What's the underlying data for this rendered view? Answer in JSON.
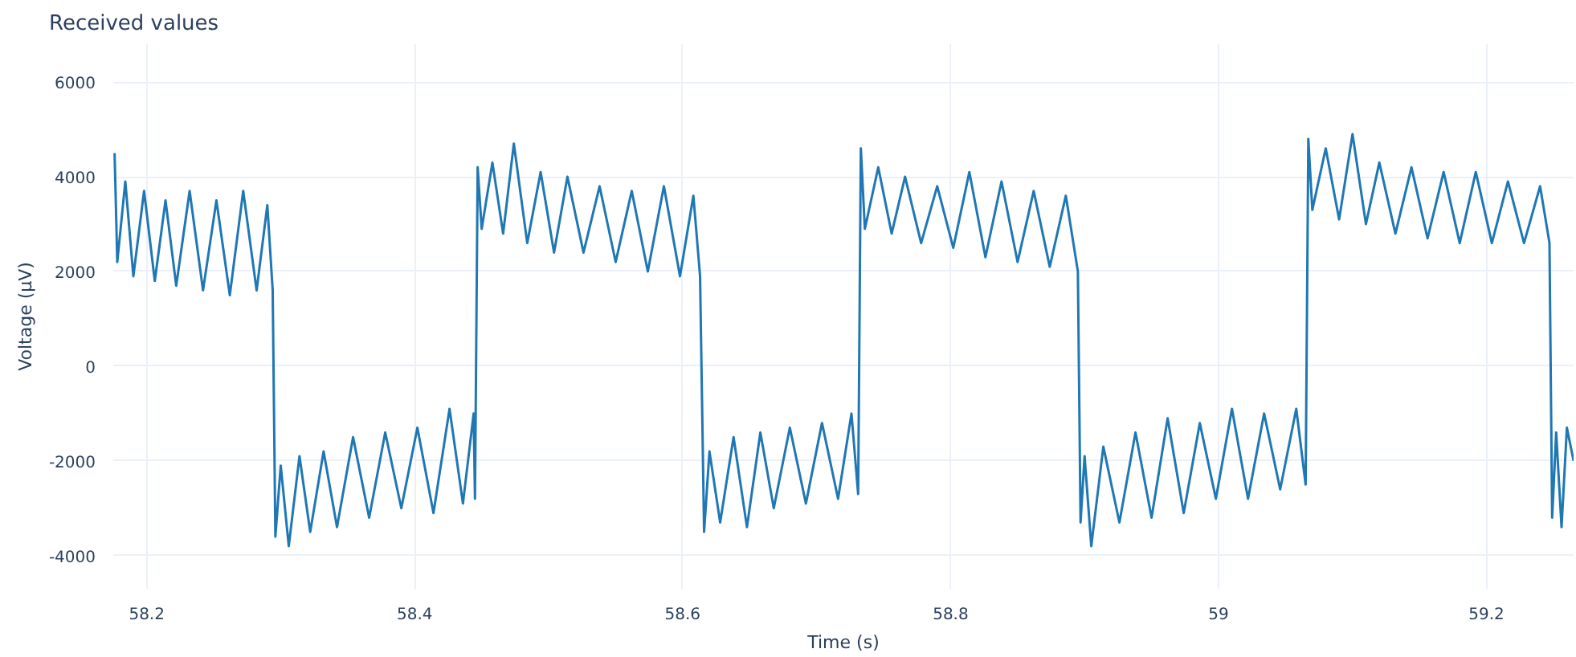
{
  "chart_data": {
    "type": "line",
    "title": "Received values",
    "xlabel": "Time (s)",
    "ylabel": "Voltage (µV)",
    "xlim": [
      58.175,
      59.265
    ],
    "ylim": [
      -4700,
      6800
    ],
    "xticks": [
      58.2,
      58.4,
      58.6,
      58.8,
      {
        "value": 59,
        "label": "59"
      },
      59.2
    ],
    "yticks": [
      -4000,
      -2000,
      0,
      2000,
      4000,
      6000
    ],
    "grid": true,
    "marker": "none",
    "line_style": "solid",
    "series": [
      {
        "color": "#1f77b4",
        "x": [
          58.176,
          58.178,
          58.184,
          58.19,
          58.198,
          58.206,
          58.214,
          58.222,
          58.232,
          58.242,
          58.252,
          58.262,
          58.272,
          58.282,
          58.29,
          58.294,
          58.296,
          58.3,
          58.306,
          58.314,
          58.322,
          58.332,
          58.342,
          58.354,
          58.366,
          58.378,
          58.39,
          58.402,
          58.414,
          58.426,
          58.436,
          58.444,
          58.445,
          58.447,
          58.45,
          58.458,
          58.466,
          58.474,
          58.484,
          58.494,
          58.504,
          58.514,
          58.526,
          58.538,
          58.55,
          58.562,
          58.574,
          58.586,
          58.598,
          58.608,
          58.613,
          58.616,
          58.62,
          58.628,
          58.638,
          58.648,
          58.658,
          58.668,
          58.68,
          58.692,
          58.704,
          58.716,
          58.726,
          58.731,
          58.733,
          58.736,
          58.746,
          58.756,
          58.766,
          58.778,
          58.79,
          58.802,
          58.814,
          58.826,
          58.838,
          58.85,
          58.862,
          58.874,
          58.886,
          58.895,
          58.897,
          58.9,
          58.905,
          58.914,
          58.926,
          58.938,
          58.95,
          58.962,
          58.974,
          58.986,
          58.998,
          59.01,
          59.022,
          59.034,
          59.046,
          59.058,
          59.065,
          59.067,
          59.07,
          59.08,
          59.09,
          59.1,
          59.11,
          59.12,
          59.132,
          59.144,
          59.156,
          59.168,
          59.18,
          59.192,
          59.204,
          59.216,
          59.228,
          59.24,
          59.247,
          59.249,
          59.252,
          59.256,
          59.26,
          59.265
        ],
        "values": [
          4500,
          2200,
          3900,
          1900,
          3700,
          1800,
          3500,
          1700,
          3700,
          1600,
          3500,
          1500,
          3700,
          1600,
          3400,
          1600,
          -3600,
          -2100,
          -3800,
          -1900,
          -3500,
          -1800,
          -3400,
          -1500,
          -3200,
          -1400,
          -3000,
          -1300,
          -3100,
          -900,
          -2900,
          -1000,
          -2800,
          4200,
          2900,
          4300,
          2800,
          4700,
          2600,
          4100,
          2400,
          4000,
          2400,
          3800,
          2200,
          3700,
          2000,
          3800,
          1900,
          3600,
          1900,
          -3500,
          -1800,
          -3300,
          -1500,
          -3400,
          -1400,
          -3000,
          -1300,
          -2900,
          -1200,
          -2800,
          -1000,
          -2700,
          4600,
          2900,
          4200,
          2800,
          4000,
          2600,
          3800,
          2500,
          4100,
          2300,
          3900,
          2200,
          3700,
          2100,
          3600,
          2000,
          -3300,
          -1900,
          -3800,
          -1700,
          -3300,
          -1400,
          -3200,
          -1100,
          -3100,
          -1200,
          -2800,
          -900,
          -2800,
          -1000,
          -2600,
          -900,
          -2500,
          4800,
          3300,
          4600,
          3100,
          4900,
          3000,
          4300,
          2800,
          4200,
          2700,
          4100,
          2600,
          4100,
          2600,
          3900,
          2600,
          3800,
          2600,
          -3200,
          -1400,
          -3400,
          -1300,
          -2000
        ]
      }
    ]
  }
}
